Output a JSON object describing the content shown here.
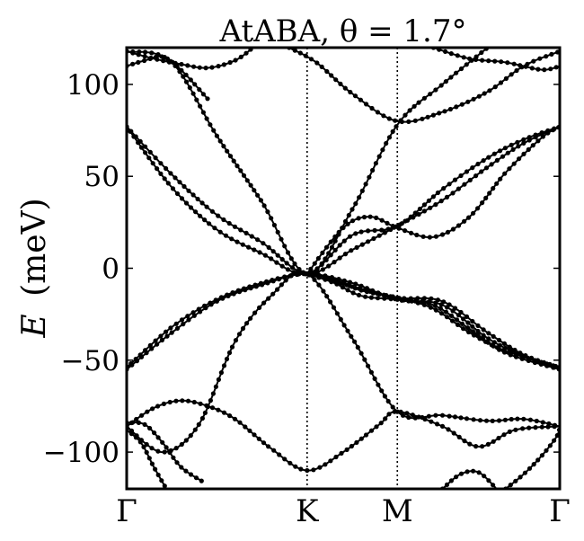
{
  "chart_data": {
    "type": "line",
    "title": "AtABA, θ = 1.7°",
    "ylabel": "E (meV)",
    "ylabel_symbol": "E",
    "ylabel_unit": "(meV)",
    "xlabel": "",
    "x_ticks": [
      "Γ",
      "K",
      "M",
      "Γ"
    ],
    "x_tick_positions": [
      0,
      1,
      1.5,
      2.4
    ],
    "xlim": [
      0,
      2.4
    ],
    "ylim": [
      -120,
      120
    ],
    "y_ticks": [
      100,
      50,
      0,
      -50,
      -100
    ],
    "y_tick_labels": [
      "100",
      "50",
      "0",
      "−50",
      "−100"
    ],
    "grid": false,
    "markers": "filled circles on line",
    "line_color": "#000000",
    "series": [
      {
        "points": [
          [
            0,
            118
          ],
          [
            0.25,
            112
          ],
          [
            0.5,
            72
          ],
          [
            0.75,
            36
          ],
          [
            1,
            -3
          ],
          [
            1.25,
            32
          ],
          [
            1.5,
            78
          ],
          [
            1.75,
            100
          ],
          [
            2,
            120
          ]
        ]
      },
      {
        "points": [
          [
            0,
            110
          ],
          [
            0.1,
            113
          ],
          [
            0.2,
            115
          ],
          [
            0.3,
            108
          ],
          [
            0.45,
            92
          ]
        ]
      },
      {
        "points": [
          [
            1.7,
            120
          ],
          [
            1.9,
            114
          ],
          [
            2.1,
            112
          ],
          [
            2.3,
            108
          ],
          [
            2.4,
            110
          ]
        ]
      },
      {
        "points": [
          [
            0,
            118
          ],
          [
            0.15,
            114
          ],
          [
            0.3,
            111
          ],
          [
            0.45,
            109
          ],
          [
            0.6,
            113
          ],
          [
            0.7,
            120
          ]
        ]
      },
      {
        "points": [
          [
            0.9,
            120
          ],
          [
            1.05,
            112
          ],
          [
            1.25,
            95
          ],
          [
            1.5,
            80
          ],
          [
            1.75,
            85
          ],
          [
            2,
            96
          ],
          [
            2.2,
            110
          ],
          [
            2.4,
            118
          ]
        ]
      },
      {
        "points": [
          [
            0,
            77
          ],
          [
            0.25,
            44
          ],
          [
            0.5,
            21
          ],
          [
            0.75,
            8
          ],
          [
            1,
            -3
          ],
          [
            1.25,
            18
          ],
          [
            1.5,
            23
          ],
          [
            1.75,
            43
          ],
          [
            2,
            60
          ],
          [
            2.2,
            70
          ],
          [
            2.4,
            77
          ]
        ]
      },
      {
        "points": [
          [
            0,
            77
          ],
          [
            0.25,
            51
          ],
          [
            0.5,
            29
          ],
          [
            0.75,
            14
          ],
          [
            1,
            -3
          ],
          [
            1.25,
            10
          ],
          [
            1.5,
            23
          ],
          [
            1.75,
            37
          ],
          [
            2,
            55
          ],
          [
            2.2,
            68
          ],
          [
            2.4,
            77
          ]
        ]
      },
      {
        "points": [
          [
            1,
            -3
          ],
          [
            1.2,
            22
          ],
          [
            1.35,
            28
          ],
          [
            1.5,
            22
          ],
          [
            1.7,
            17
          ],
          [
            1.9,
            28
          ],
          [
            2.1,
            52
          ],
          [
            2.3,
            71
          ],
          [
            2.4,
            77
          ]
        ]
      },
      {
        "points": [
          [
            1,
            -3
          ],
          [
            1.15,
            -6
          ],
          [
            1.3,
            -12
          ],
          [
            1.5,
            -16
          ],
          [
            1.7,
            -22
          ],
          [
            1.9,
            -35
          ],
          [
            2.1,
            -45
          ],
          [
            2.4,
            -54
          ]
        ]
      },
      {
        "points": [
          [
            1,
            -3
          ],
          [
            1.15,
            -8
          ],
          [
            1.3,
            -15
          ],
          [
            1.5,
            -17
          ],
          [
            1.7,
            -20
          ],
          [
            1.9,
            -33
          ],
          [
            2.1,
            -46
          ],
          [
            2.4,
            -55
          ]
        ]
      },
      {
        "points": [
          [
            0,
            -54
          ],
          [
            0.25,
            -32
          ],
          [
            0.5,
            -17
          ],
          [
            0.75,
            -8
          ],
          [
            1,
            -3
          ],
          [
            1.25,
            -8
          ],
          [
            1.5,
            -17
          ],
          [
            1.75,
            -20
          ],
          [
            2,
            -38
          ],
          [
            2.2,
            -48
          ],
          [
            2.4,
            -55
          ]
        ]
      },
      {
        "points": [
          [
            0,
            -55
          ],
          [
            0.25,
            -35
          ],
          [
            0.5,
            -18
          ],
          [
            0.75,
            -9
          ],
          [
            1,
            -3
          ],
          [
            1.25,
            -10
          ],
          [
            1.5,
            -16
          ],
          [
            1.75,
            -18
          ],
          [
            2,
            -35
          ],
          [
            2.2,
            -47
          ],
          [
            2.4,
            -54
          ]
        ]
      },
      {
        "points": [
          [
            0,
            -86
          ],
          [
            0.2,
            -100
          ],
          [
            0.4,
            -85
          ],
          [
            0.6,
            -40
          ],
          [
            0.8,
            -15
          ],
          [
            1,
            -3
          ],
          [
            1.25,
            -38
          ],
          [
            1.5,
            -78
          ],
          [
            1.75,
            -80
          ],
          [
            2,
            -83
          ],
          [
            2.2,
            -82
          ],
          [
            2.4,
            -86
          ]
        ]
      },
      {
        "points": [
          [
            0,
            -86
          ],
          [
            0.15,
            -76
          ],
          [
            0.3,
            -72
          ],
          [
            0.45,
            -75
          ],
          [
            0.6,
            -82
          ],
          [
            0.8,
            -98
          ],
          [
            1,
            -110
          ],
          [
            1.2,
            -100
          ],
          [
            1.4,
            -85
          ],
          [
            1.5,
            -78
          ],
          [
            1.75,
            -86
          ],
          [
            1.95,
            -97
          ],
          [
            2.15,
            -88
          ],
          [
            2.4,
            -86
          ]
        ]
      },
      {
        "points": [
          [
            0,
            -84
          ],
          [
            0.1,
            -85
          ],
          [
            0.2,
            -95
          ],
          [
            0.3,
            -108
          ],
          [
            0.42,
            -116
          ]
        ]
      },
      {
        "points": [
          [
            0,
            -88
          ],
          [
            0.08,
            -95
          ],
          [
            0.15,
            -108
          ],
          [
            0.22,
            -120
          ]
        ]
      },
      {
        "points": [
          [
            1.75,
            -120
          ],
          [
            1.85,
            -112
          ],
          [
            1.95,
            -111
          ],
          [
            2.05,
            -120
          ]
        ]
      },
      {
        "points": [
          [
            2.1,
            -120
          ],
          [
            2.2,
            -112
          ],
          [
            2.3,
            -102
          ],
          [
            2.38,
            -92
          ],
          [
            2.4,
            -87
          ]
        ]
      }
    ]
  }
}
